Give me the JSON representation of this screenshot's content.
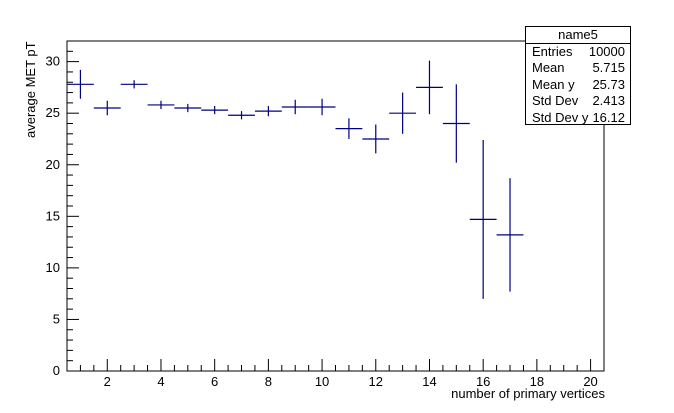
{
  "chart_data": {
    "type": "scatter",
    "title": "",
    "xlabel": "number of primary vertices",
    "ylabel": "average MET pT",
    "xlim": [
      0.5,
      20.5
    ],
    "ylim": [
      0,
      32
    ],
    "x_ticks": [
      2,
      4,
      6,
      8,
      10,
      12,
      14,
      16,
      18,
      20
    ],
    "y_ticks": [
      0,
      5,
      10,
      15,
      20,
      25,
      30
    ],
    "grid": false,
    "series_color": "#000080",
    "points": [
      {
        "x": 1,
        "y": 27.8,
        "xerr": 0.5,
        "yerr": 1.4
      },
      {
        "x": 2,
        "y": 25.5,
        "xerr": 0.5,
        "yerr": 0.7
      },
      {
        "x": 3,
        "y": 27.8,
        "xerr": 0.5,
        "yerr": 0.4
      },
      {
        "x": 4,
        "y": 25.8,
        "xerr": 0.5,
        "yerr": 0.4
      },
      {
        "x": 5,
        "y": 25.5,
        "xerr": 0.5,
        "yerr": 0.4
      },
      {
        "x": 6,
        "y": 25.3,
        "xerr": 0.5,
        "yerr": 0.4
      },
      {
        "x": 7,
        "y": 24.8,
        "xerr": 0.5,
        "yerr": 0.4
      },
      {
        "x": 8,
        "y": 25.2,
        "xerr": 0.5,
        "yerr": 0.5
      },
      {
        "x": 9,
        "y": 25.6,
        "xerr": 0.5,
        "yerr": 0.7
      },
      {
        "x": 10,
        "y": 25.6,
        "xerr": 0.5,
        "yerr": 0.8
      },
      {
        "x": 11,
        "y": 23.5,
        "xerr": 0.5,
        "yerr": 1.0
      },
      {
        "x": 12,
        "y": 22.5,
        "xerr": 0.5,
        "yerr": 1.4
      },
      {
        "x": 13,
        "y": 25.0,
        "xerr": 0.5,
        "yerr": 2.0
      },
      {
        "x": 14,
        "y": 27.5,
        "xerr": 0.5,
        "yerr": 2.6
      },
      {
        "x": 15,
        "y": 24.0,
        "xerr": 0.5,
        "yerr": 3.8
      },
      {
        "x": 16,
        "y": 14.7,
        "xerr": 0.5,
        "yerr": 7.7
      },
      {
        "x": 17,
        "y": 13.2,
        "xerr": 0.5,
        "yerr": 5.5
      }
    ]
  },
  "stats": {
    "title": "name5",
    "rows": [
      {
        "label": "Entries",
        "value": "10000"
      },
      {
        "label": "Mean",
        "value": "5.715"
      },
      {
        "label": "Mean y",
        "value": "25.73"
      },
      {
        "label": "Std Dev",
        "value": "2.413"
      },
      {
        "label": "Std Dev y",
        "value": "16.12"
      }
    ]
  }
}
